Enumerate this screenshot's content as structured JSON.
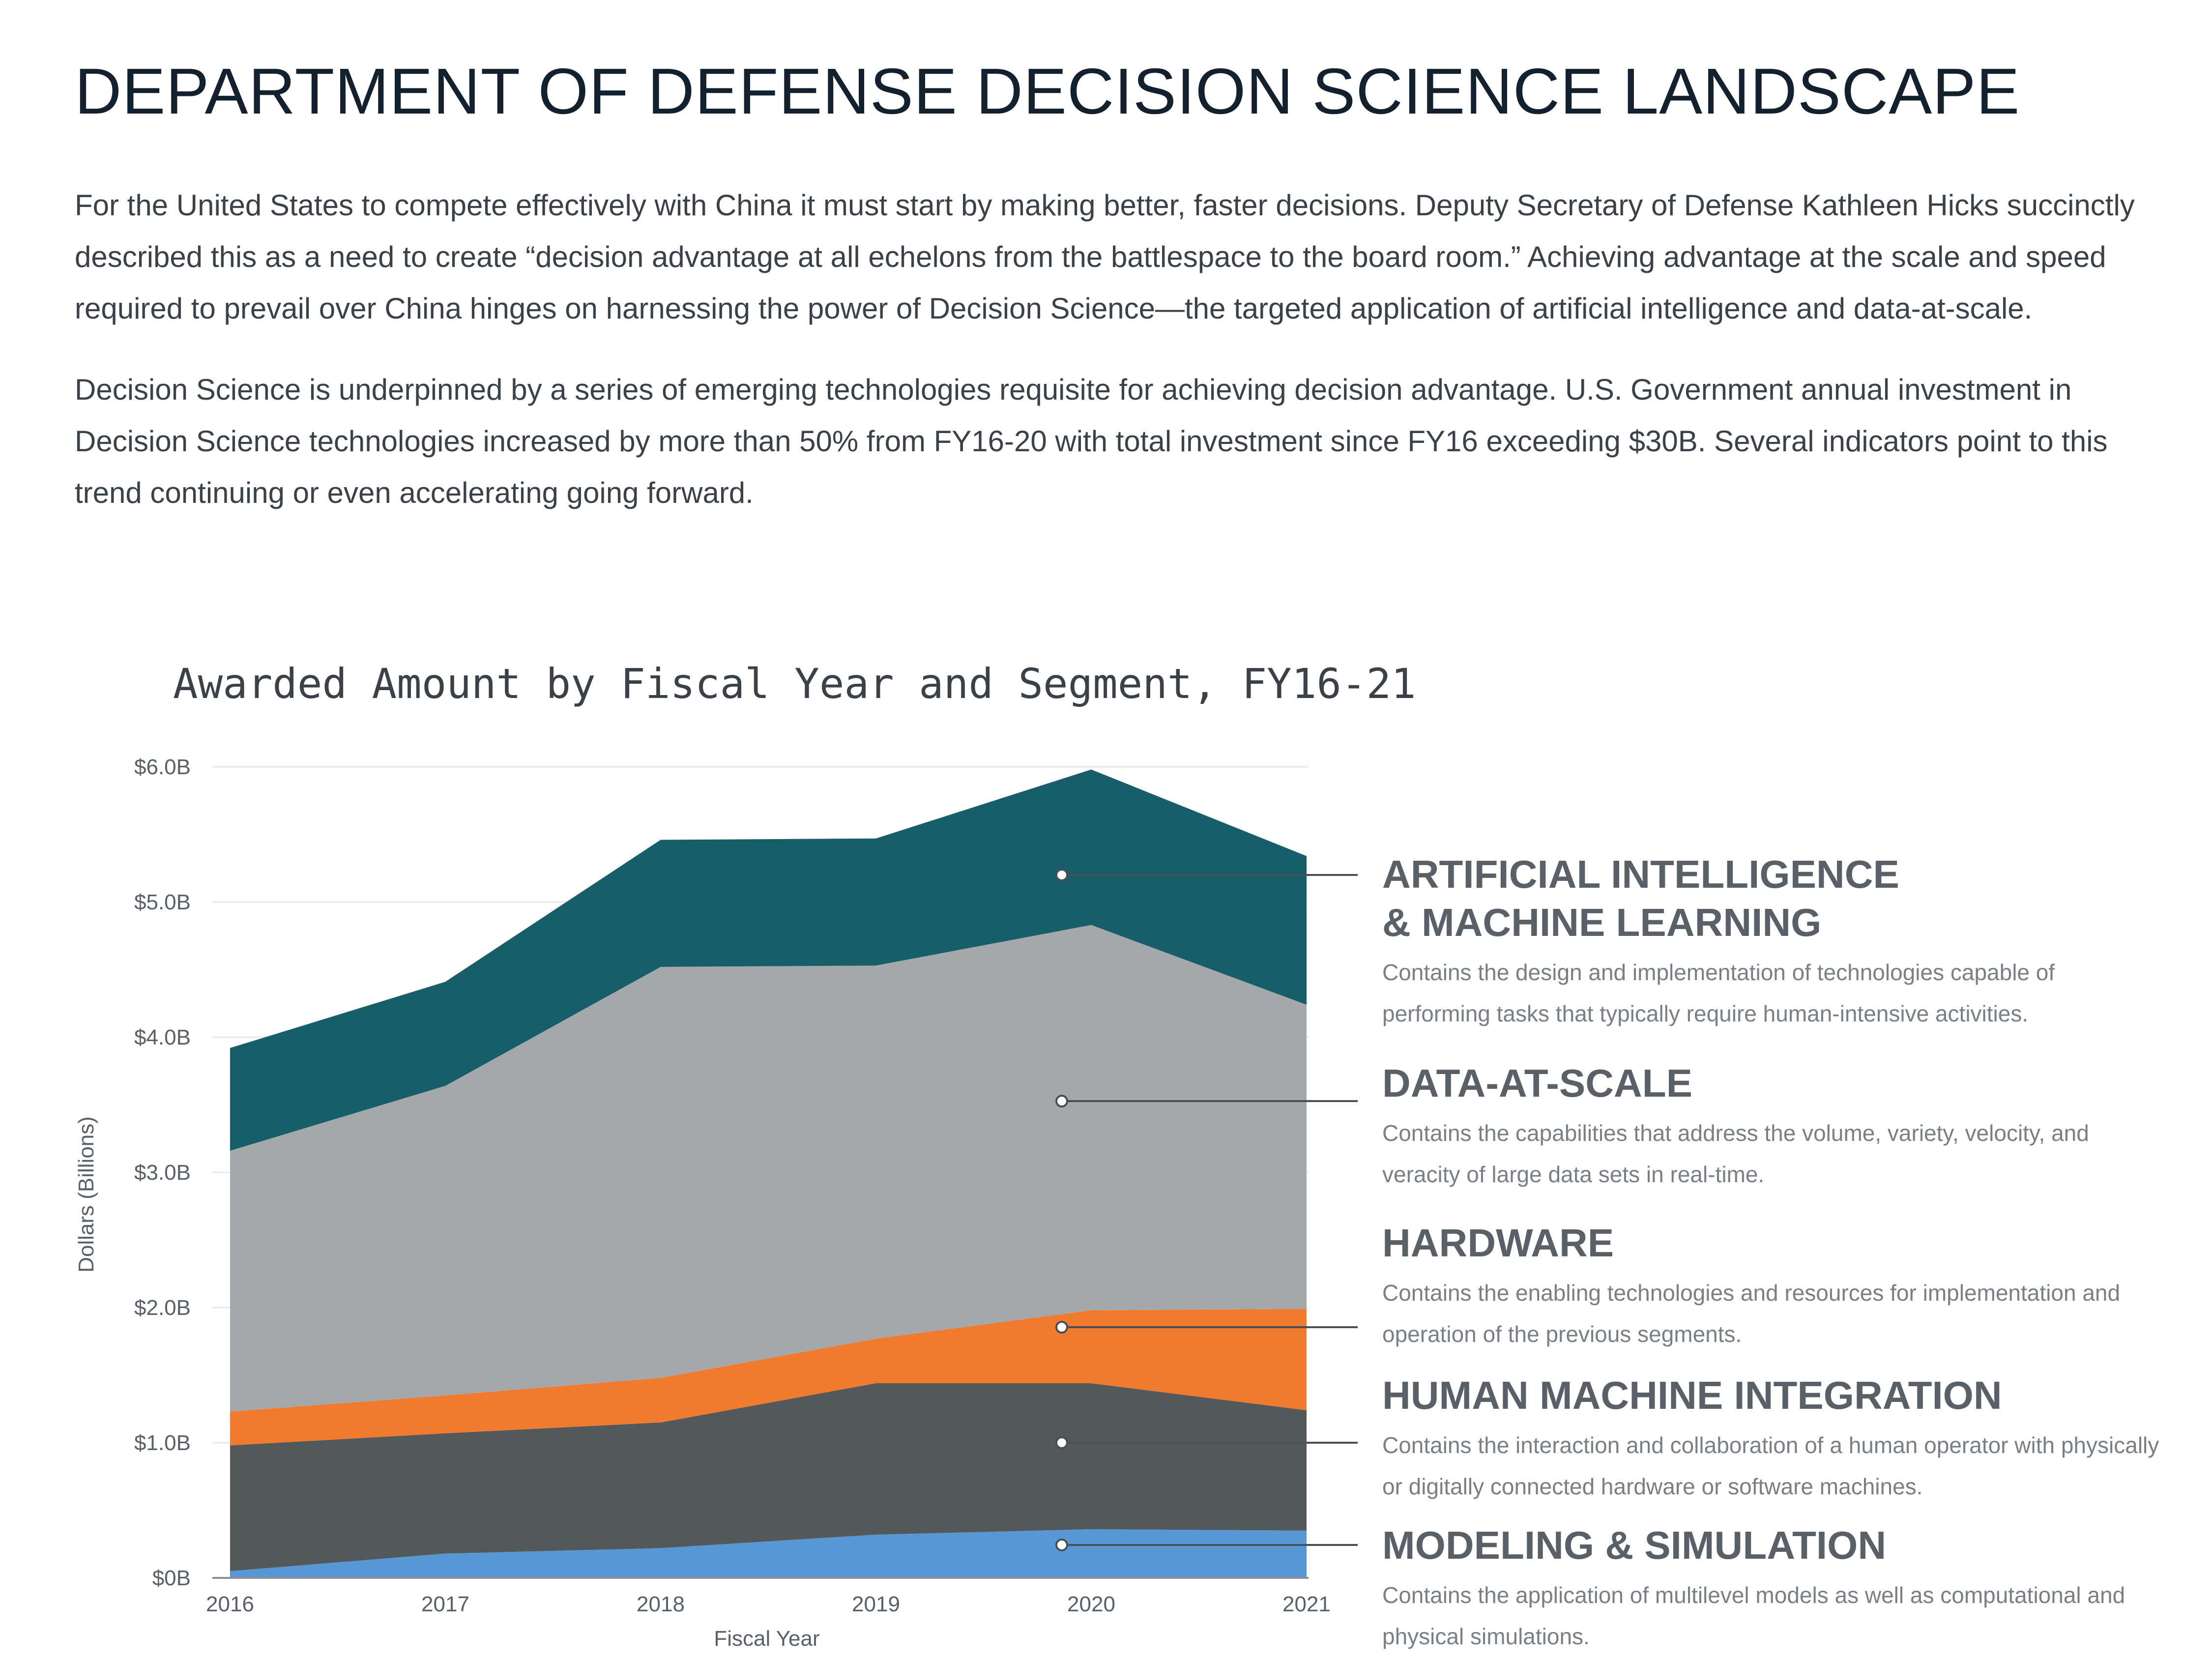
{
  "page": {
    "title": "DEPARTMENT OF DEFENSE DECISION SCIENCE LANDSCAPE",
    "paragraphs": [
      "For the United States to compete effectively with China it must start by making better, faster decisions. Deputy Secretary of Defense Kathleen Hicks succinctly described this as a need to create “decision advantage at all echelons from the battlespace to the board room.” Achieving advantage at the scale and speed required to prevail over China hinges on harnessing the power of Decision Science—the targeted application of artificial intelligence and data-at-scale.",
      "Decision Science is underpinned by a series of emerging technologies requisite for achieving decision advantage. U.S. Government annual investment in Decision Science technologies increased by more than 50% from FY16-20 with total investment since FY16 exceeding $30B. Several indicators point to this trend continuing or even accelerating going forward."
    ]
  },
  "chart_data": {
    "type": "area",
    "stacked": true,
    "title": "Awarded Amount by Fiscal Year and Segment, FY16-21",
    "xlabel": "Fiscal Year",
    "ylabel": "Dollars (Billions)",
    "x": [
      "2016",
      "2017",
      "2018",
      "2019",
      "2020",
      "2021"
    ],
    "ylim": [
      0,
      6
    ],
    "yticks": [
      {
        "value": 0,
        "label": "$0B"
      },
      {
        "value": 1,
        "label": "$1.0B"
      },
      {
        "value": 2,
        "label": "$2.0B"
      },
      {
        "value": 3,
        "label": "$3.0B"
      },
      {
        "value": 4,
        "label": "$4.0B"
      },
      {
        "value": 5,
        "label": "$5.0B"
      },
      {
        "value": 6,
        "label": "$6.0B"
      }
    ],
    "grid": true,
    "series": [
      {
        "key": "modeling",
        "name": "MODELING & SIMULATION",
        "description": "Contains the application of multilevel models as well as computational and physical simulations.",
        "color": "#5797d6",
        "values": [
          0.05,
          0.18,
          0.22,
          0.32,
          0.36,
          0.35
        ]
      },
      {
        "key": "hmi",
        "name": "HUMAN MACHINE INTEGRATION",
        "description": "Contains the interaction and collaboration of a human operator with physically or digitally connected hardware or software machines.",
        "color": "#525958",
        "values": [
          0.93,
          0.89,
          0.93,
          1.12,
          1.08,
          0.89
        ]
      },
      {
        "key": "hardware",
        "name": "HARDWARE",
        "description": "Contains the enabling technologies and resources for implementation and operation of the previous segments.",
        "color": "#f07a2e",
        "values": [
          0.25,
          0.28,
          0.33,
          0.33,
          0.54,
          0.75
        ]
      },
      {
        "key": "das",
        "name": "DATA-AT-SCALE",
        "description": "Contains the capabilities that address the volume, variety, velocity, and veracity of large data sets in real-time.",
        "color": "#a4a8ab",
        "values": [
          1.93,
          2.29,
          3.04,
          2.76,
          2.85,
          2.25
        ]
      },
      {
        "key": "aiml",
        "name": "ARTIFICIAL INTELLIGENCE\n& MACHINE LEARNING",
        "description": "Contains the design and implementation of technologies capable of performing tasks that typically require human-intensive activities.",
        "color": "#185e69",
        "values": [
          0.76,
          0.77,
          0.94,
          0.94,
          1.15,
          1.1
        ]
      }
    ]
  }
}
